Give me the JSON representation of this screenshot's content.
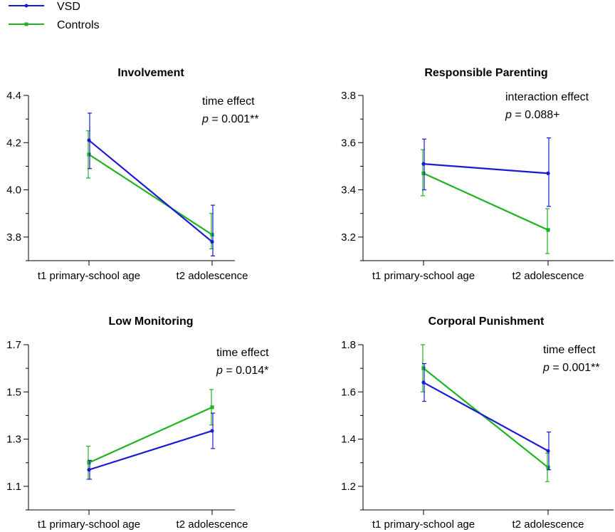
{
  "legend": {
    "entries": [
      {
        "name": "VSD",
        "color": "#1a1ad6"
      },
      {
        "name": "Controls",
        "color": "#1fb41f"
      }
    ]
  },
  "chart_data": [
    {
      "type": "line",
      "title": "Involvement",
      "categories": [
        "t1 primary-school age",
        "t2 adolescence"
      ],
      "ylim": [
        3.7,
        4.4
      ],
      "yticks": [
        3.8,
        4.0,
        4.2,
        4.4
      ],
      "ytick_labels": [
        "3.8",
        "4.0",
        "4.2",
        "4.4"
      ],
      "series": [
        {
          "name": "VSD",
          "values": [
            4.21,
            3.78
          ],
          "err": [
            [
              4.09,
              4.325
            ],
            [
              3.72,
              3.935
            ]
          ]
        },
        {
          "name": "Controls",
          "values": [
            4.15,
            3.81
          ],
          "err": [
            [
              4.05,
              4.25
            ],
            [
              3.75,
              3.9
            ]
          ]
        }
      ],
      "annotation": {
        "effect": "time effect",
        "p_symbol": "p",
        "p_text": " = 0.001**"
      }
    },
    {
      "type": "line",
      "title": "Responsible Parenting",
      "categories": [
        "t1 primary-school age",
        "t2 adolescence"
      ],
      "ylim": [
        3.1,
        3.8
      ],
      "yticks": [
        3.2,
        3.4,
        3.6,
        3.8
      ],
      "ytick_labels": [
        "3.2",
        "3.4",
        "3.6",
        "3.8"
      ],
      "series": [
        {
          "name": "VSD",
          "values": [
            3.51,
            3.47
          ],
          "err": [
            [
              3.4,
              3.615
            ],
            [
              3.33,
              3.62
            ]
          ]
        },
        {
          "name": "Controls",
          "values": [
            3.47,
            3.23
          ],
          "err": [
            [
              3.375,
              3.57
            ],
            [
              3.13,
              3.32
            ]
          ]
        }
      ],
      "annotation": {
        "effect": "interaction effect",
        "p_symbol": "p",
        "p_text": " = 0.088+"
      }
    },
    {
      "type": "line",
      "title": "Low Monitoring",
      "categories": [
        "t1 primary-school age",
        "t2 adolescence"
      ],
      "ylim": [
        1.0,
        1.7
      ],
      "yticks": [
        1.1,
        1.3,
        1.5,
        1.7
      ],
      "ytick_labels": [
        "1.1",
        "1.3",
        "1.5",
        "1.7"
      ],
      "series": [
        {
          "name": "VSD",
          "values": [
            1.17,
            1.335
          ],
          "err": [
            [
              1.13,
              1.21
            ],
            [
              1.26,
              1.41
            ]
          ]
        },
        {
          "name": "Controls",
          "values": [
            1.2,
            1.435
          ],
          "err": [
            [
              1.13,
              1.27
            ],
            [
              1.36,
              1.51
            ]
          ]
        }
      ],
      "annotation": {
        "effect": "time effect",
        "p_symbol": "p",
        "p_text": " = 0.014*"
      }
    },
    {
      "type": "line",
      "title": "Corporal Punishment",
      "categories": [
        "t1 primary-school age",
        "t2 adolescence"
      ],
      "ylim": [
        1.1,
        1.8
      ],
      "yticks": [
        1.2,
        1.4,
        1.6,
        1.8
      ],
      "ytick_labels": [
        "1.2",
        "1.4",
        "1.6",
        "1.8"
      ],
      "series": [
        {
          "name": "VSD",
          "values": [
            1.64,
            1.35
          ],
          "err": [
            [
              1.56,
              1.72
            ],
            [
              1.27,
              1.43
            ]
          ]
        },
        {
          "name": "Controls",
          "values": [
            1.7,
            1.28
          ],
          "err": [
            [
              1.6,
              1.8
            ],
            [
              1.22,
              1.34
            ]
          ]
        }
      ],
      "annotation": {
        "effect": "time effect",
        "p_symbol": "p",
        "p_text": " = 0.001**"
      }
    }
  ]
}
